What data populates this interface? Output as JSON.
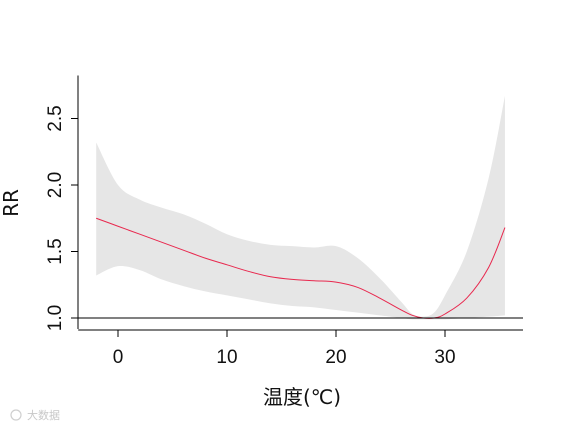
{
  "chart_data": {
    "type": "line",
    "title": "",
    "xlabel": "温度(℃)",
    "ylabel": "RR",
    "xlim": [
      -2,
      36
    ],
    "ylim": [
      1.0,
      2.65
    ],
    "x_ticks": [
      0,
      10,
      20,
      30
    ],
    "y_ticks": [
      1.0,
      1.5,
      2.0,
      2.5
    ],
    "x_tick_labels": [
      "0",
      "10",
      "20",
      "30"
    ],
    "y_tick_labels": [
      "1.0",
      "1.5",
      "2.0",
      "2.5"
    ],
    "reference_line": 1.0,
    "grid": false,
    "legend": "none",
    "colors": {
      "line": "#e8284e",
      "band": "#e6e6e6",
      "axis": "#000000"
    },
    "series": [
      {
        "x": [
          -2,
          0,
          2,
          4,
          6,
          8,
          10,
          12,
          14,
          16,
          18,
          20,
          22,
          24,
          26,
          27,
          28,
          29,
          30,
          32,
          34,
          35.5
        ],
        "y": [
          1.75,
          1.69,
          1.63,
          1.57,
          1.51,
          1.45,
          1.4,
          1.35,
          1.31,
          1.29,
          1.28,
          1.27,
          1.23,
          1.15,
          1.06,
          1.02,
          1.0,
          1.0,
          1.03,
          1.15,
          1.38,
          1.68
        ],
        "lower": [
          1.32,
          1.39,
          1.36,
          1.29,
          1.24,
          1.2,
          1.17,
          1.14,
          1.11,
          1.09,
          1.08,
          1.06,
          1.04,
          1.02,
          1.0,
          0.99,
          0.99,
          0.99,
          0.99,
          1.0,
          1.01,
          1.02
        ],
        "upper": [
          2.32,
          2.0,
          1.89,
          1.83,
          1.78,
          1.71,
          1.63,
          1.58,
          1.55,
          1.54,
          1.53,
          1.54,
          1.45,
          1.3,
          1.12,
          1.03,
          1.01,
          1.04,
          1.17,
          1.5,
          2.05,
          2.67
        ]
      }
    ]
  },
  "watermark": {
    "text": "大数据"
  }
}
